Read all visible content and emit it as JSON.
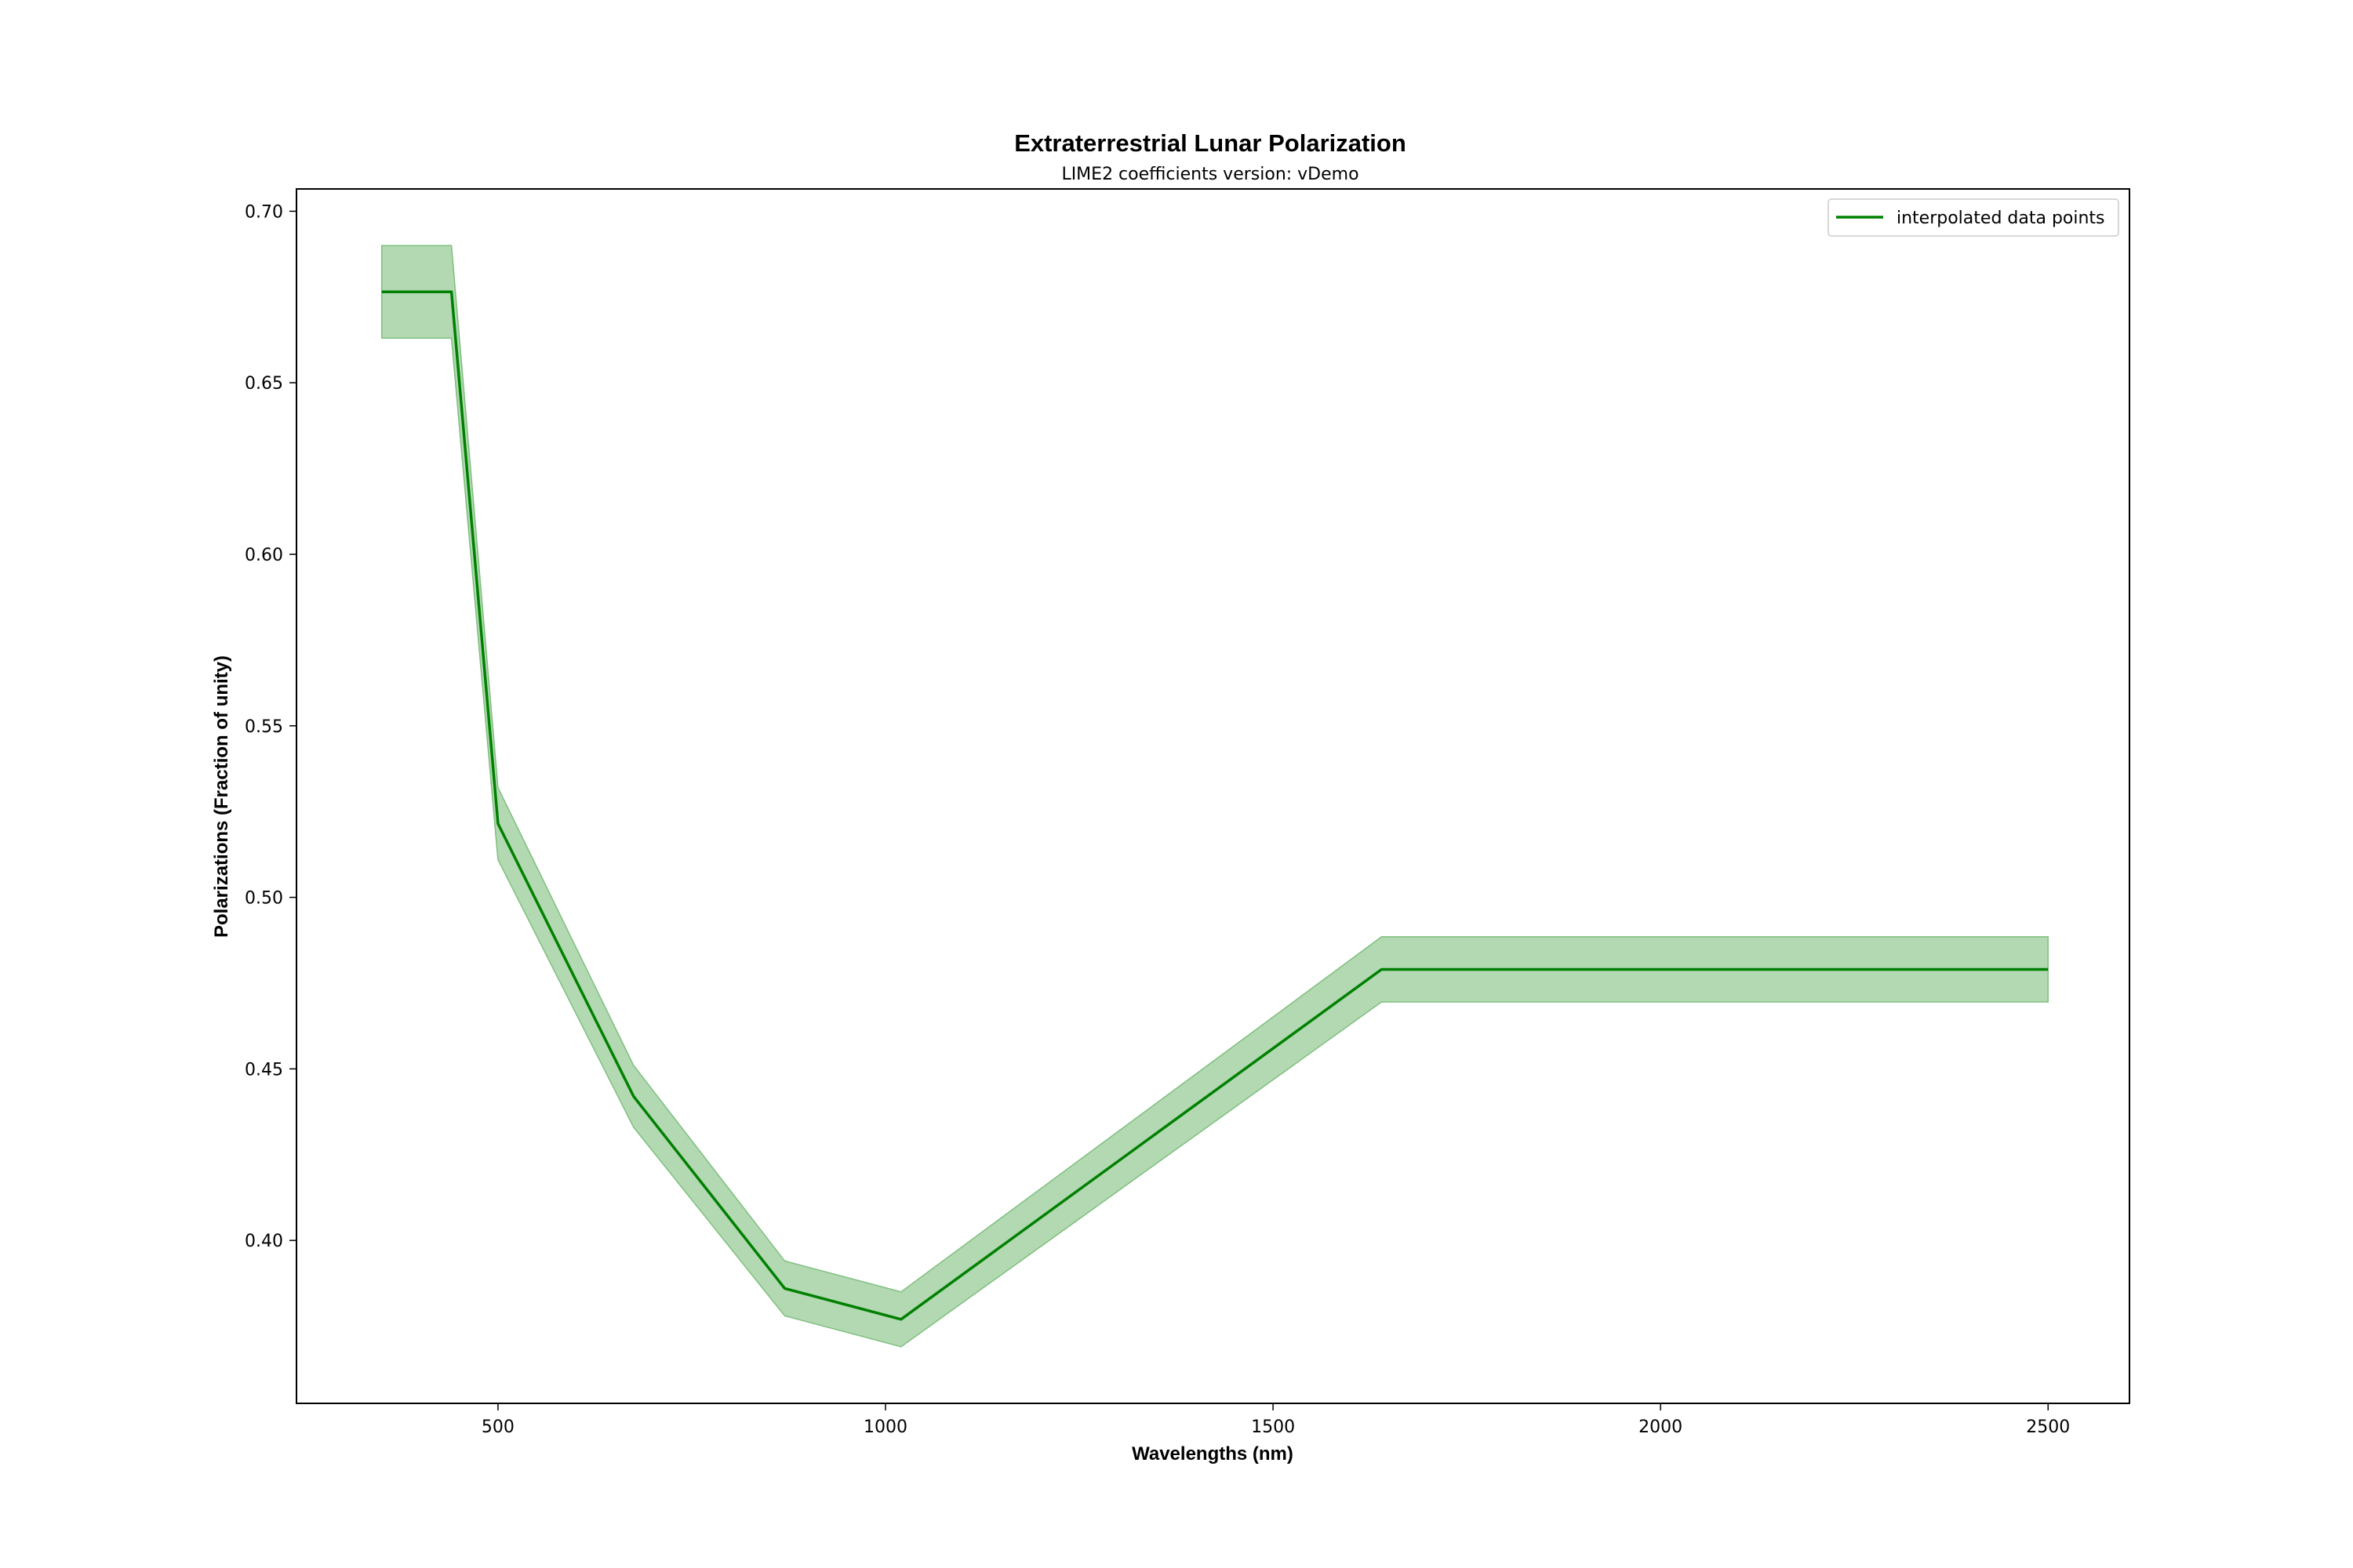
{
  "chart_data": {
    "type": "line",
    "title": "Extraterrestrial Lunar Polarization",
    "subtitle": "LIME2 coefficients version: vDemo",
    "xlabel": "Wavelengths (nm)",
    "ylabel": "Polarizations (Fraction of unity)",
    "xlim": [
      240,
      2605
    ],
    "ylim": [
      0.3525,
      0.7065
    ],
    "xticks": [
      500,
      1000,
      1500,
      2000,
      2500
    ],
    "xtick_labels": [
      "500",
      "1000",
      "1500",
      "2000",
      "2500"
    ],
    "yticks": [
      0.4,
      0.45,
      0.5,
      0.55,
      0.6,
      0.65,
      0.7
    ],
    "ytick_labels": [
      "0.40",
      "0.45",
      "0.50",
      "0.55",
      "0.60",
      "0.65",
      "0.70"
    ],
    "grid": false,
    "legend_position": "top-right",
    "series": [
      {
        "name": "interpolated data points",
        "color": "#008000",
        "band_color": "#7fbf7f",
        "x": [
          350,
          440,
          500,
          675,
          870,
          1020,
          1640,
          2500
        ],
        "y": [
          0.6765,
          0.6765,
          0.5215,
          0.442,
          0.386,
          0.377,
          0.479,
          0.479
        ],
        "y_upper": [
          0.69,
          0.69,
          0.532,
          0.451,
          0.394,
          0.385,
          0.4885,
          0.4885
        ],
        "y_lower": [
          0.663,
          0.663,
          0.511,
          0.433,
          0.378,
          0.369,
          0.4695,
          0.4695
        ]
      }
    ]
  }
}
